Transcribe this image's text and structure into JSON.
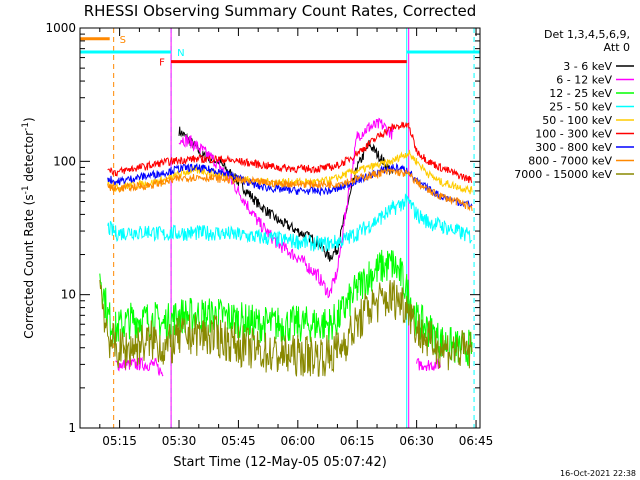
{
  "chart_data": {
    "type": "line",
    "title": "RHESSI Observing Summary Count Rates, Corrected",
    "xlabel": "Start Time (12-May-05 05:07:42)",
    "ylabel": "Corrected Count Rate (s",
    "ylabel_exp1": "-1",
    "ylabel_mid": " detector",
    "ylabel_exp2": "-1",
    "ylabel_end": ")",
    "yscale": "log",
    "ylim": [
      1,
      1000
    ],
    "xlim_minutes": [
      5.0,
      106.0
    ],
    "x_ticks": [
      "05:15",
      "05:30",
      "05:45",
      "06:00",
      "06:15",
      "06:30",
      "06:45"
    ],
    "x_tick_minutes": [
      15,
      30,
      45,
      60,
      75,
      90,
      105
    ],
    "y_ticks": [
      "1",
      "10",
      "100",
      "1000"
    ],
    "y_tick_values": [
      1,
      10,
      100,
      1000
    ],
    "legend_title_1": "Det 1,3,4,5,6,9,",
    "legend_title_2": "Att 0",
    "footer_timestamp": "16-Oct-2021 22:38",
    "flags": [
      {
        "label": "S",
        "color": "#ff8800",
        "x_start": 5.0,
        "x_end": 12.5,
        "level": 830,
        "marker_x": 13.5
      },
      {
        "label": "N",
        "color": "#00ffff",
        "x_start": 5.0,
        "x_end": 28.0,
        "level": 660,
        "marker_x": 28.0
      },
      {
        "label": "F",
        "color": "#ff0000",
        "x_start": 28.0,
        "x_end": 87.5,
        "level": 560,
        "marker_x": 28.0
      }
    ],
    "markers": [
      {
        "color": "#ff8800",
        "x": 13.5,
        "dashed": true
      },
      {
        "color": "#00ffff",
        "x": 28.0,
        "dashed": true
      },
      {
        "color": "#00ffff",
        "x": 104.5,
        "dashed": true
      },
      {
        "color": "#00ffff",
        "x": 87.5,
        "dashed": false
      },
      {
        "color": "#ff00ff",
        "x": 28.0,
        "dashed": false
      },
      {
        "color": "#ff00ff",
        "x": 88.0,
        "dashed": false
      }
    ],
    "x": [
      10,
      12,
      14,
      16,
      18,
      20,
      22,
      24,
      26,
      28,
      30,
      33,
      36,
      40,
      45,
      50,
      55,
      60,
      65,
      68,
      70,
      72,
      75,
      78,
      81,
      84,
      86,
      88,
      90,
      93,
      96,
      100,
      104
    ],
    "series": [
      {
        "name": "3 - 6 keV",
        "color": "#000000",
        "values": [
          null,
          null,
          null,
          null,
          null,
          null,
          null,
          null,
          null,
          null,
          170,
          140,
          110,
          100,
          70,
          48,
          36,
          30,
          25,
          19,
          22,
          40,
          90,
          135,
          105,
          80,
          null,
          null,
          null,
          null,
          null,
          null,
          null
        ]
      },
      {
        "name": "6 - 12 keV",
        "color": "#ff00ff",
        "values": [
          null,
          null,
          3.0,
          3.0,
          3.0,
          3.0,
          3.0,
          3.0,
          2.5,
          null,
          150,
          140,
          120,
          95,
          60,
          35,
          24,
          19,
          14,
          10,
          15,
          40,
          155,
          180,
          190,
          160,
          null,
          null,
          3.0,
          3.0,
          3.0,
          null,
          null
        ]
      },
      {
        "name": "12 - 25 keV",
        "color": "#00ff00",
        "values": [
          15,
          7,
          5.5,
          6,
          6.5,
          6.5,
          6.5,
          6.5,
          6,
          6.5,
          7,
          7,
          7,
          7,
          6.5,
          6,
          6,
          6,
          6,
          6,
          6.5,
          8,
          11,
          14,
          16,
          17,
          14,
          10,
          6.5,
          5.5,
          4.5,
          4,
          4
        ]
      },
      {
        "name": "25 - 50 keV",
        "color": "#00ffff",
        "values": [
          null,
          32,
          29,
          29,
          30,
          29,
          30,
          29,
          28,
          29,
          29,
          29,
          29,
          29,
          28,
          27,
          26,
          25,
          24,
          24,
          25,
          26,
          29,
          33,
          38,
          44,
          48,
          50,
          40,
          35,
          33,
          30,
          27
        ]
      },
      {
        "name": "50 - 100 keV",
        "color": "#ffcc00",
        "values": [
          null,
          68,
          63,
          65,
          66,
          67,
          68,
          70,
          72,
          75,
          80,
          85,
          85,
          80,
          75,
          70,
          70,
          70,
          70,
          72,
          75,
          80,
          85,
          90,
          95,
          100,
          110,
          115,
          100,
          80,
          70,
          65,
          60
        ]
      },
      {
        "name": "100 - 300 keV",
        "color": "#ff0000",
        "values": [
          null,
          90,
          82,
          85,
          88,
          90,
          92,
          95,
          98,
          100,
          102,
          104,
          104,
          104,
          100,
          95,
          90,
          88,
          88,
          90,
          93,
          100,
          115,
          135,
          160,
          180,
          185,
          185,
          120,
          100,
          90,
          80,
          72
        ]
      },
      {
        "name": "300 - 800 keV",
        "color": "#0000ff",
        "values": [
          null,
          75,
          70,
          72,
          74,
          76,
          78,
          80,
          82,
          85,
          88,
          90,
          88,
          85,
          75,
          65,
          62,
          60,
          60,
          60,
          62,
          66,
          72,
          78,
          85,
          90,
          88,
          85,
          70,
          62,
          55,
          50,
          47
        ]
      },
      {
        "name": "800 - 7000 keV",
        "color": "#ff8800",
        "values": [
          null,
          65,
          62,
          63,
          64,
          65,
          66,
          67,
          70,
          72,
          74,
          76,
          76,
          74,
          72,
          70,
          68,
          68,
          67,
          67,
          68,
          70,
          74,
          78,
          82,
          84,
          82,
          80,
          70,
          60,
          55,
          50,
          45
        ]
      },
      {
        "name": "7000 - 15000 keV",
        "color": "#888800",
        "values": [
          12,
          5,
          4.0,
          3.8,
          4.0,
          4.2,
          4.4,
          4.6,
          4.0,
          4.2,
          4.8,
          5.0,
          5.0,
          4.8,
          4.2,
          3.8,
          3.5,
          3.5,
          3.5,
          3.5,
          3.8,
          4.5,
          6.0,
          8.0,
          9.0,
          9.5,
          9.0,
          8.0,
          5.5,
          4.5,
          4.0,
          3.8,
          3.8
        ]
      }
    ]
  }
}
